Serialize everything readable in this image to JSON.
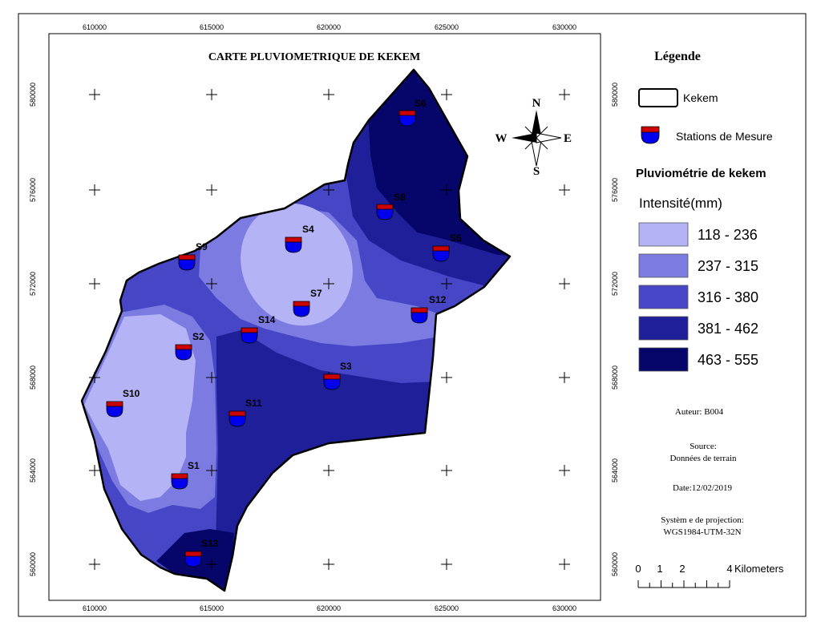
{
  "map": {
    "title": "CARTE PLUVIOMETRIQUE DE KEKEM",
    "x_ticks": [
      "610000",
      "615000",
      "620000",
      "625000",
      "630000"
    ],
    "y_ticks": [
      "580000",
      "576000",
      "572000",
      "568000",
      "564000",
      "560000"
    ],
    "stations": [
      {
        "id": "S1",
        "label": "S1"
      },
      {
        "id": "S2",
        "label": "S2"
      },
      {
        "id": "S3",
        "label": "S3"
      },
      {
        "id": "S4",
        "label": "S4"
      },
      {
        "id": "S5",
        "label": "S5"
      },
      {
        "id": "S6",
        "label": "S6"
      },
      {
        "id": "S7",
        "label": "S7"
      },
      {
        "id": "S8",
        "label": "S8"
      },
      {
        "id": "S9",
        "label": "S9"
      },
      {
        "id": "S10",
        "label": "S10"
      },
      {
        "id": "S11",
        "label": "S11"
      },
      {
        "id": "S12",
        "label": "S12"
      },
      {
        "id": "S13",
        "label": "S13"
      },
      {
        "id": "S14",
        "label": "S14"
      }
    ]
  },
  "compass": {
    "n": "N",
    "s": "S",
    "e": "E",
    "w": "W"
  },
  "legend": {
    "title": "Légende",
    "boundary_label": "Kekem",
    "stations_label": "Stations de Mesure",
    "rain_title": "Pluviométrie de kekem",
    "intensity_label": "Intensité(mm)",
    "classes": [
      {
        "label": "118 - 236",
        "color": "#b3b3f6"
      },
      {
        "label": "237 - 315",
        "color": "#7b7be1"
      },
      {
        "label": "316 - 380",
        "color": "#4646c6"
      },
      {
        "label": "381 - 462",
        "color": "#1f1f9a"
      },
      {
        "label": "463 - 555",
        "color": "#06066a"
      }
    ]
  },
  "info": {
    "author": "Auteur: B004",
    "source_title": "Source:",
    "source_text": "Données de terrain",
    "date": "Date:12/02/2019",
    "projection_title": "Systèm e de projection:",
    "projection_text": "WGS1984-UTM-32N"
  },
  "scalebar": {
    "labels": [
      "0",
      "1",
      "2",
      "4"
    ],
    "unit": "Kilometers"
  }
}
